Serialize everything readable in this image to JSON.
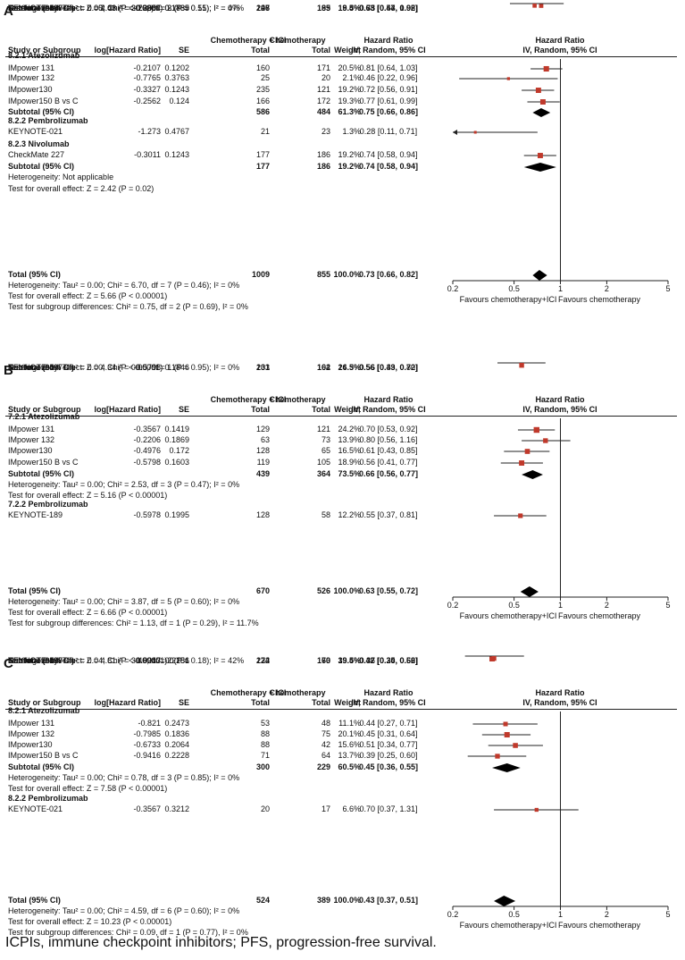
{
  "footer": "ICPIs, immune checkpoint inhibitors; PFS, progression-free survival.",
  "chart_data": [
    {
      "type": "forest",
      "panel": "A",
      "headers": {
        "study": "Study or Subgroup",
        "loghr": "log[Hazard Ratio]",
        "se": "SE",
        "ici_top": "Chemotherapy + ICI",
        "ici": "Total",
        "chemo_top": "Chemotherapy",
        "chemo": "Total",
        "weight": "Weight",
        "hr_top": "Hazard Ratio",
        "hr": "IV, Random, 95% CI",
        "plot_top": "Hazard Ratio",
        "plot": "IV, Random, 95% CI"
      },
      "axis": {
        "scale": "log",
        "ticks": [
          0.2,
          0.5,
          1,
          2,
          5
        ],
        "tick_labels": [
          "0.2",
          "0.5",
          "1",
          "2",
          "5"
        ],
        "xlim": [
          0.2,
          5
        ],
        "left_label": "Favours chemotherapy+ICI",
        "right_label": "Favours chemotherapy"
      },
      "groups": [
        {
          "title": "8.2.1 Atezolizumab",
          "studies": [
            {
              "name": "IMpower 131",
              "loghr": "-0.2107",
              "se": "0.1202",
              "n1": "160",
              "n2": "171",
              "weight": "20.5%",
              "ci_text": "0.81 [0.64, 1.03]",
              "hr": 0.81,
              "lo": 0.64,
              "hi": 1.03
            },
            {
              "name": "IMpower 132",
              "loghr": "-0.7765",
              "se": "0.3763",
              "n1": "25",
              "n2": "20",
              "weight": "2.1%",
              "ci_text": "0.46 [0.22, 0.96]",
              "hr": 0.46,
              "lo": 0.22,
              "hi": 0.96
            },
            {
              "name": "IMpower130",
              "loghr": "-0.3327",
              "se": "0.1243",
              "n1": "235",
              "n2": "121",
              "weight": "19.2%",
              "ci_text": "0.72 [0.56, 0.91]",
              "hr": 0.72,
              "lo": 0.56,
              "hi": 0.91
            },
            {
              "name": "IMpower150 B vs C",
              "loghr": "-0.2562",
              "se": "0.124",
              "n1": "166",
              "n2": "172",
              "weight": "19.3%",
              "ci_text": "0.77 [0.61, 0.99]",
              "hr": 0.77,
              "lo": 0.61,
              "hi": 0.99
            }
          ],
          "subtotal": {
            "label": "Subtotal (95% CI)",
            "n1": "586",
            "n2": "484",
            "weight": "61.3%",
            "ci_text": "0.75 [0.66, 0.86]",
            "hr": 0.75,
            "lo": 0.66,
            "hi": 0.86
          },
          "notes": [
            "Heterogeneity: Tau² = 0.00; Chi² = 2.29, df = 3 (P = 0.51); I² = 0%",
            "Test for overall effect: Z = 4.06 (P < 0.0001)"
          ]
        },
        {
          "title": "8.2.2 Pembrolizumab",
          "studies": [
            {
              "name": "KEYNOTE-021",
              "loghr": "-1.273",
              "se": "0.4767",
              "n1": "21",
              "n2": "23",
              "weight": "1.3%",
              "ci_text": "0.28 [0.11, 0.71]",
              "hr": 0.28,
              "lo": 0.11,
              "hi": 0.71
            },
            {
              "name": "KEYNOTE-189",
              "loghr": "-0.2904",
              "se": "0.1739",
              "n1": "127",
              "n2": "63",
              "weight": "9.8%",
              "ci_text": "0.75 [0.53, 1.05]",
              "hr": 0.75,
              "lo": 0.53,
              "hi": 1.05
            },
            {
              "name": "KEYNOTE-407",
              "loghr": "-0.3857",
              "se": "0.1885",
              "n1": "98",
              "n2": "99",
              "weight": "8.4%",
              "ci_text": "0.68 [0.47, 0.98]",
              "hr": 0.68,
              "lo": 0.47,
              "hi": 0.98
            }
          ],
          "subtotal": {
            "label": "Subtotal (95% CI)",
            "n1": "246",
            "n2": "185",
            "weight": "19.5%",
            "ci_text": "0.63 [0.44, 0.92]",
            "hr": 0.63,
            "lo": 0.44,
            "hi": 0.92
          },
          "notes": [
            "Heterogeneity: Tau² = 0.05; Chi² = 3.76, df = 2 (P = 0.15); I² = 47%",
            "Test for overall effect: Z = 2.43 (P = 0.02)"
          ]
        },
        {
          "title": "8.2.3 Nivolumab",
          "studies": [
            {
              "name": "CheckMate 227",
              "loghr": "-0.3011",
              "se": "0.1243",
              "n1": "177",
              "n2": "186",
              "weight": "19.2%",
              "ci_text": "0.74 [0.58, 0.94]",
              "hr": 0.74,
              "lo": 0.58,
              "hi": 0.94
            }
          ],
          "subtotal": {
            "label": "Subtotal (95% CI)",
            "n1": "177",
            "n2": "186",
            "weight": "19.2%",
            "ci_text": "0.74 [0.58, 0.94]",
            "hr": 0.74,
            "lo": 0.58,
            "hi": 0.94
          },
          "notes": [
            "Heterogeneity: Not applicable",
            "Test for overall effect: Z = 2.42 (P = 0.02)"
          ]
        }
      ],
      "total": {
        "label": "Total (95% CI)",
        "n1": "1009",
        "n2": "855",
        "weight": "100.0%",
        "ci_text": "0.73 [0.66, 0.82]",
        "hr": 0.73,
        "lo": 0.66,
        "hi": 0.82
      },
      "total_notes": [
        "Heterogeneity: Tau² = 0.00; Chi² = 6.70, df = 7 (P = 0.46); I² = 0%",
        "Test for overall effect: Z = 5.66 (P < 0.00001)",
        "Test for subgroup differences: Chi² = 0.75, df = 2 (P = 0.69), I² = 0%"
      ]
    },
    {
      "type": "forest",
      "panel": "B",
      "headers": {
        "study": "Study or Subgroup",
        "loghr": "log[Hazard Ratio]",
        "se": "SE",
        "ici_top": "Chemotherapy + ICI",
        "ici": "Total",
        "chemo_top": "Chemotherapy",
        "chemo": "Total",
        "weight": "Weight",
        "hr_top": "Hazard Ratio",
        "hr": "IV, Random, 95% CI",
        "plot_top": "Hazard Ratio",
        "plot": "IV, Random, 95% CI"
      },
      "axis": {
        "scale": "log",
        "ticks": [
          0.2,
          0.5,
          1,
          2,
          5
        ],
        "tick_labels": [
          "0.2",
          "0.5",
          "1",
          "2",
          "5"
        ],
        "xlim": [
          0.2,
          5
        ],
        "left_label": "Favours chemotherapy+ICI",
        "right_label": "Favours chemotherapy"
      },
      "groups": [
        {
          "title": "7.2.1 Atezolizumab",
          "studies": [
            {
              "name": "IMpower 131",
              "loghr": "-0.3567",
              "se": "0.1419",
              "n1": "129",
              "n2": "121",
              "weight": "24.2%",
              "ci_text": "0.70 [0.53, 0.92]",
              "hr": 0.7,
              "lo": 0.53,
              "hi": 0.92
            },
            {
              "name": "IMpower 132",
              "loghr": "-0.2206",
              "se": "0.1869",
              "n1": "63",
              "n2": "73",
              "weight": "13.9%",
              "ci_text": "0.80 [0.56, 1.16]",
              "hr": 0.8,
              "lo": 0.56,
              "hi": 1.16
            },
            {
              "name": "IMpower130",
              "loghr": "-0.4976",
              "se": "0.172",
              "n1": "128",
              "n2": "65",
              "weight": "16.5%",
              "ci_text": "0.61 [0.43, 0.85]",
              "hr": 0.61,
              "lo": 0.43,
              "hi": 0.85
            },
            {
              "name": "IMpower150 B vs C",
              "loghr": "-0.5798",
              "se": "0.1603",
              "n1": "119",
              "n2": "105",
              "weight": "18.9%",
              "ci_text": "0.56 [0.41, 0.77]",
              "hr": 0.56,
              "lo": 0.41,
              "hi": 0.77
            }
          ],
          "subtotal": {
            "label": "Subtotal (95% CI)",
            "n1": "439",
            "n2": "364",
            "weight": "73.5%",
            "ci_text": "0.66 [0.56, 0.77]",
            "hr": 0.66,
            "lo": 0.56,
            "hi": 0.77
          },
          "notes": [
            "Heterogeneity: Tau² = 0.00; Chi² = 2.53, df = 3 (P = 0.47); I² = 0%",
            "Test for overall effect: Z = 5.16 (P < 0.00001)"
          ]
        },
        {
          "title": "7.2.2 Pembrolizumab",
          "studies": [
            {
              "name": "KEYNOTE-189",
              "loghr": "-0.5978",
              "se": "0.1995",
              "n1": "128",
              "n2": "58",
              "weight": "12.2%",
              "ci_text": "0.55 [0.37, 0.81]",
              "hr": 0.55,
              "lo": 0.37,
              "hi": 0.81
            },
            {
              "name": "KEYNOTE-407",
              "loghr": "-0.5798",
              "se": "0.1846",
              "n1": "103",
              "n2": "104",
              "weight": "14.3%",
              "ci_text": "0.56 [0.39, 0.80]",
              "hr": 0.56,
              "lo": 0.39,
              "hi": 0.8
            }
          ],
          "subtotal": {
            "label": "Subtotal (95% CI)",
            "n1": "231",
            "n2": "162",
            "weight": "26.5%",
            "ci_text": "0.56 [0.43, 0.72]",
            "hr": 0.56,
            "lo": 0.43,
            "hi": 0.72
          },
          "notes": [
            "Heterogeneity: Tau² = 0.00; Chi² = 0.00, df = 1 (P = 0.95); I² = 0%",
            "Test for overall effect: Z = 4.34 (P < 0.0001)"
          ]
        }
      ],
      "total": {
        "label": "Total (95% CI)",
        "n1": "670",
        "n2": "526",
        "weight": "100.0%",
        "ci_text": "0.63 [0.55, 0.72]",
        "hr": 0.63,
        "lo": 0.55,
        "hi": 0.72
      },
      "total_notes": [
        "Heterogeneity: Tau² = 0.00; Chi² = 3.87, df = 5 (P = 0.60); I² = 0%",
        "Test for overall effect: Z = 6.66 (P < 0.00001)",
        "Test for subgroup differences: Chi² = 1.13, df = 1 (P = 0.29), I² = 11.7%"
      ]
    },
    {
      "type": "forest",
      "panel": "C",
      "headers": {
        "study": "Study or Subgroup",
        "loghr": "log[Hazard Ratio]",
        "se": "SE",
        "ici_top": "Chemotherapy + ICI",
        "ici": "Total",
        "chemo_top": "Chemotherapy",
        "chemo": "Total",
        "weight": "Weight",
        "hr_top": "Hazard Ratio",
        "hr": "IV, Random, 95% CI",
        "plot_top": "Hazard Ratio",
        "plot": "IV, Random, 95% CI"
      },
      "axis": {
        "scale": "log",
        "ticks": [
          0.2,
          0.5,
          1,
          2,
          5
        ],
        "tick_labels": [
          "0.2",
          "0.5",
          "1",
          "2",
          "5"
        ],
        "xlim": [
          0.2,
          5
        ],
        "left_label": "Favours chemotherapy+ICI",
        "right_label": "Favours chemotherapy"
      },
      "groups": [
        {
          "title": "8.2.1 Atezolizumab",
          "studies": [
            {
              "name": "IMpower 131",
              "loghr": "-0.821",
              "se": "0.2473",
              "n1": "53",
              "n2": "48",
              "weight": "11.1%",
              "ci_text": "0.44 [0.27, 0.71]",
              "hr": 0.44,
              "lo": 0.27,
              "hi": 0.71
            },
            {
              "name": "IMpower 132",
              "loghr": "-0.7985",
              "se": "0.1836",
              "n1": "88",
              "n2": "75",
              "weight": "20.1%",
              "ci_text": "0.45 [0.31, 0.64]",
              "hr": 0.45,
              "lo": 0.31,
              "hi": 0.64
            },
            {
              "name": "IMpower130",
              "loghr": "-0.6733",
              "se": "0.2064",
              "n1": "88",
              "n2": "42",
              "weight": "15.6%",
              "ci_text": "0.51 [0.34, 0.77]",
              "hr": 0.51,
              "lo": 0.34,
              "hi": 0.77
            },
            {
              "name": "IMpower150 B vs C",
              "loghr": "-0.9416",
              "se": "0.2228",
              "n1": "71",
              "n2": "64",
              "weight": "13.7%",
              "ci_text": "0.39 [0.25, 0.60]",
              "hr": 0.39,
              "lo": 0.25,
              "hi": 0.6
            }
          ],
          "subtotal": {
            "label": "Subtotal (95% CI)",
            "n1": "300",
            "n2": "229",
            "weight": "60.5%",
            "ci_text": "0.45 [0.36, 0.55]",
            "hr": 0.45,
            "lo": 0.36,
            "hi": 0.55
          },
          "notes": [
            "Heterogeneity: Tau² = 0.00; Chi² = 0.78, df = 3 (P = 0.85); I² = 0%",
            "Test for overall effect: Z = 7.58 (P < 0.00001)"
          ]
        },
        {
          "title": "8.2.2 Pembrolizumab",
          "studies": [
            {
              "name": "KEYNOTE-021",
              "loghr": "-0.3567",
              "se": "0.3212",
              "n1": "20",
              "n2": "17",
              "weight": "6.6%",
              "ci_text": "0.70 [0.37, 1.31]",
              "hr": 0.7,
              "lo": 0.37,
              "hi": 1.31
            },
            {
              "name": "KEYNOTE-189",
              "loghr": "-1.0217",
              "se": "0.186",
              "n1": "132",
              "n2": "70",
              "weight": "19.6%",
              "ci_text": "0.36 [0.25, 0.52]",
              "hr": 0.36,
              "lo": 0.25,
              "hi": 0.52
            },
            {
              "name": "KEYNOTE-407",
              "loghr": "-0.9943",
              "se": "0.2251",
              "n1": "72",
              "n2": "73",
              "weight": "13.4%",
              "ci_text": "0.37 [0.24, 0.58]",
              "hr": 0.37,
              "lo": 0.24,
              "hi": 0.58
            }
          ],
          "subtotal": {
            "label": "Subtotal (95% CI)",
            "n1": "224",
            "n2": "160",
            "weight": "39.5%",
            "ci_text": "0.42 [0.30, 0.60]",
            "hr": 0.42,
            "lo": 0.3,
            "hi": 0.6
          },
          "notes": [
            "Heterogeneity: Tau² = 0.04; Chi² = 3.46, df = 2 (P = 0.18); I² = 42%",
            "Test for overall effect: Z = 4.81 (P < 0.00001)"
          ]
        }
      ],
      "total": {
        "label": "Total (95% CI)",
        "n1": "524",
        "n2": "389",
        "weight": "100.0%",
        "ci_text": "0.43 [0.37, 0.51]",
        "hr": 0.43,
        "lo": 0.37,
        "hi": 0.51
      },
      "total_notes": [
        "Heterogeneity: Tau² = 0.00; Chi² = 4.59, df = 6 (P = 0.60); I² = 0%",
        "Test for overall effect: Z = 10.23 (P < 0.00001)",
        "Test for subgroup differences: Chi² = 0.09, df = 1 (P = 0.77), I² = 0%"
      ]
    }
  ]
}
